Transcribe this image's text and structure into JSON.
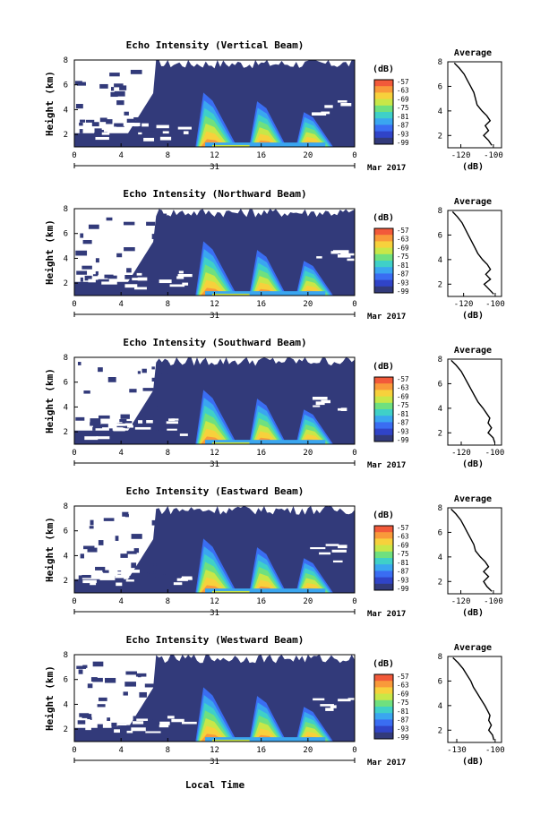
{
  "figure": {
    "xlabel": "Local Time",
    "date_label": "Mar 2017",
    "day_label": "31",
    "avg_title": "Average",
    "unit_label": "(dB)"
  },
  "colorbar": {
    "unit": "(dB)",
    "ticks": [
      "-57",
      "-63",
      "-69",
      "-75",
      "-81",
      "-87",
      "-93",
      "-99"
    ],
    "colors": [
      "#f25a3a",
      "#f99a3a",
      "#f7d13c",
      "#c8e748",
      "#6fe07f",
      "#3fd0c8",
      "#3aa6f0",
      "#3a6df2",
      "#3044c8",
      "#323a7a"
    ]
  },
  "chart_data": [
    {
      "type": "heatmap",
      "title": "Echo Intensity (Vertical Beam)",
      "ylabel": "Height (km)",
      "x_ticks": [
        "0",
        "4",
        "8",
        "12",
        "16",
        "20",
        "0"
      ],
      "y_ticks": [
        "2",
        "4",
        "6",
        "8"
      ],
      "xlim": [
        0,
        24
      ],
      "ylim": [
        1,
        8
      ],
      "profile": {
        "title": "Average",
        "xlabel": "(dB)",
        "x_ticks": [
          "-120",
          "-100"
        ],
        "xlim": [
          -128,
          -95
        ],
        "y_ticks": [
          "2",
          "4",
          "6",
          "8"
        ],
        "ylim": [
          1,
          8
        ],
        "heights": [
          1.2,
          1.6,
          2.0,
          2.4,
          2.8,
          3.2,
          3.6,
          4.0,
          4.5,
          5.0,
          5.5,
          6.0,
          6.5,
          7.0,
          7.5,
          7.9
        ],
        "values": [
          -101,
          -103,
          -106,
          -103,
          -105,
          -102,
          -104,
          -107,
          -110,
          -111,
          -112,
          -114,
          -116,
          -118,
          -121,
          -124
        ]
      }
    },
    {
      "type": "heatmap",
      "title": "Echo Intensity (Northward Beam)",
      "ylabel": "Height (km)",
      "x_ticks": [
        "0",
        "4",
        "8",
        "12",
        "16",
        "20",
        "0"
      ],
      "y_ticks": [
        "2",
        "4",
        "6",
        "8"
      ],
      "xlim": [
        0,
        24
      ],
      "ylim": [
        1,
        8
      ],
      "profile": {
        "title": "Average",
        "xlabel": "(dB)",
        "x_ticks": [
          "-120",
          "-100"
        ],
        "xlim": [
          -130,
          -96
        ],
        "y_ticks": [
          "2",
          "4",
          "6",
          "8"
        ],
        "ylim": [
          1,
          8
        ],
        "heights": [
          1.2,
          1.6,
          2.0,
          2.4,
          2.8,
          3.2,
          3.6,
          4.0,
          4.5,
          5.0,
          5.5,
          6.0,
          6.5,
          7.0,
          7.5,
          7.9
        ],
        "values": [
          -101,
          -104,
          -107,
          -103,
          -106,
          -103,
          -105,
          -108,
          -111,
          -113,
          -115,
          -117,
          -119,
          -121,
          -124,
          -127
        ]
      }
    },
    {
      "type": "heatmap",
      "title": "Echo Intensity (Southward Beam)",
      "ylabel": "Height (km)",
      "x_ticks": [
        "0",
        "4",
        "8",
        "12",
        "16",
        "20",
        "0"
      ],
      "y_ticks": [
        "2",
        "4",
        "6",
        "8"
      ],
      "xlim": [
        0,
        24
      ],
      "ylim": [
        1,
        8
      ],
      "profile": {
        "title": "Average",
        "xlabel": "(dB)",
        "x_ticks": [
          "-120",
          "-100"
        ],
        "xlim": [
          -128,
          -96
        ],
        "y_ticks": [
          "2",
          "4",
          "6",
          "8"
        ],
        "ylim": [
          1,
          8
        ],
        "heights": [
          1.2,
          1.6,
          2.0,
          2.4,
          2.8,
          3.2,
          3.6,
          4.0,
          4.5,
          5.0,
          5.5,
          6.0,
          6.5,
          7.0,
          7.5,
          7.9
        ],
        "values": [
          -100,
          -101,
          -104,
          -102,
          -104,
          -103,
          -105,
          -107,
          -110,
          -112,
          -114,
          -116,
          -118,
          -120,
          -123,
          -126
        ]
      }
    },
    {
      "type": "heatmap",
      "title": "Echo Intensity (Eastward Beam)",
      "ylabel": "Height (km)",
      "x_ticks": [
        "0",
        "4",
        "8",
        "12",
        "16",
        "20",
        "0"
      ],
      "y_ticks": [
        "2",
        "4",
        "6",
        "8"
      ],
      "xlim": [
        0,
        24
      ],
      "ylim": [
        1,
        8
      ],
      "profile": {
        "title": "Average",
        "xlabel": "(dB)",
        "x_ticks": [
          "-120",
          "-100"
        ],
        "xlim": [
          -128,
          -95
        ],
        "y_ticks": [
          "2",
          "4",
          "6",
          "8"
        ],
        "ylim": [
          1,
          8
        ],
        "heights": [
          1.2,
          1.6,
          2.0,
          2.4,
          2.8,
          3.2,
          3.6,
          4.0,
          4.5,
          5.0,
          5.5,
          6.0,
          6.5,
          7.0,
          7.5,
          7.9
        ],
        "values": [
          -101,
          -104,
          -106,
          -103,
          -106,
          -103,
          -105,
          -108,
          -111,
          -112,
          -114,
          -116,
          -118,
          -120,
          -123,
          -126
        ]
      }
    },
    {
      "type": "heatmap",
      "title": "Echo Intensity (Westward Beam)",
      "ylabel": "Height (km)",
      "x_ticks": [
        "0",
        "4",
        "8",
        "12",
        "16",
        "20",
        "0"
      ],
      "y_ticks": [
        "2",
        "4",
        "6",
        "8"
      ],
      "xlim": [
        0,
        24
      ],
      "ylim": [
        1,
        8
      ],
      "profile": {
        "title": "Average",
        "xlabel": "(dB)",
        "x_ticks": [
          "-130",
          "-100"
        ],
        "xlim": [
          -137,
          -95
        ],
        "y_ticks": [
          "2",
          "4",
          "6",
          "8"
        ],
        "ylim": [
          1,
          8
        ],
        "heights": [
          1.2,
          1.6,
          2.0,
          2.4,
          2.8,
          3.2,
          3.6,
          4.0,
          4.5,
          5.0,
          5.5,
          6.0,
          6.5,
          7.0,
          7.5,
          7.9
        ],
        "values": [
          -101,
          -102,
          -105,
          -103,
          -105,
          -104,
          -106,
          -108,
          -111,
          -114,
          -117,
          -119,
          -122,
          -125,
          -129,
          -133
        ]
      }
    }
  ]
}
